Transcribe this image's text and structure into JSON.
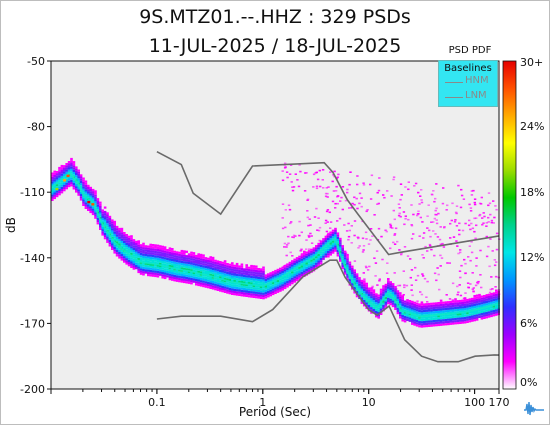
{
  "title_line1": "9S.MTZ01.--.HHZ : 329 PSDs",
  "title_line2": "11-JUL-2025 / 18-JUL-2025",
  "colorbar": {
    "title": "PSD PDF",
    "ticks": [
      "30+",
      "24%",
      "18%",
      "12%",
      "6%",
      "0%"
    ],
    "colors": [
      "#ffffff",
      "#ff00ff",
      "#9b00ff",
      "#2f2fff",
      "#0096ff",
      "#00e6e6",
      "#00d28c",
      "#00c800",
      "#9bdc00",
      "#ffff00",
      "#ffaa00",
      "#ff5000",
      "#e60000"
    ]
  },
  "legend": {
    "title": "Baselines",
    "items": [
      {
        "label": "HNM",
        "color": "#8a8a8a"
      },
      {
        "label": "LNM",
        "color": "#8a8a8a"
      }
    ]
  },
  "chart_data": {
    "type": "heatmap",
    "title": "9S.MTZ01.--.HHZ : 329 PSDs",
    "subtitle": "11-JUL-2025 / 18-JUL-2025",
    "xlabel": "Period (Sec)",
    "ylabel": "dB",
    "xscale": "log",
    "xlim": [
      0.01,
      170
    ],
    "ylim": [
      -200,
      -50
    ],
    "xticks": [
      {
        "value": 0.1,
        "label": "0.1"
      },
      {
        "value": 1,
        "label": "1"
      },
      {
        "value": 10,
        "label": "10"
      },
      {
        "value": 100,
        "label": "100"
      },
      {
        "value": 170,
        "label": "170"
      }
    ],
    "yticks": [
      -50,
      -80,
      -110,
      -140,
      -170,
      -200
    ],
    "grid": false,
    "mode_curve": {
      "period": [
        0.01,
        0.012,
        0.015,
        0.018,
        0.02,
        0.025,
        0.03,
        0.04,
        0.05,
        0.07,
        0.1,
        0.15,
        0.2,
        0.3,
        0.5,
        0.7,
        1.0,
        1.5,
        2.0,
        3.0,
        4.0,
        4.8,
        5.5,
        6.5,
        8.0,
        10.0,
        12.0,
        15.0,
        17.0,
        20.0,
        30.0,
        50.0,
        80.0,
        120.0,
        170.0
      ],
      "db": [
        -108,
        -105,
        -101,
        -106,
        -111,
        -115,
        -124,
        -133,
        -137,
        -142,
        -143,
        -145,
        -146,
        -148,
        -151,
        -152,
        -153,
        -149,
        -145,
        -140,
        -134,
        -131,
        -140,
        -148,
        -155,
        -160,
        -163,
        -156,
        -158,
        -164,
        -167,
        -166,
        -165,
        -163,
        -161
      ]
    },
    "spread_db": [
      {
        "period_min": 0.01,
        "period_max": 0.03,
        "below": 5,
        "above": 6
      },
      {
        "period_min": 0.03,
        "period_max": 0.1,
        "below": 5,
        "above": 8
      },
      {
        "period_min": 0.1,
        "period_max": 1.0,
        "below": 5,
        "above": 8
      },
      {
        "period_min": 1.0,
        "period_max": 5.0,
        "below": 5,
        "above": 5
      },
      {
        "period_min": 5.0,
        "period_max": 170.0,
        "below": 4,
        "above": 6
      }
    ],
    "scatter_region": {
      "period_min": 1.5,
      "period_max": 170.0,
      "db_min": -160,
      "db_max": -96,
      "color": "#ff00ff"
    },
    "baselines": [
      {
        "name": "HNM",
        "period": [
          0.1,
          0.17,
          0.22,
          0.4,
          0.8,
          3.8,
          4.6,
          6.3,
          7.9,
          15.4,
          20.0,
          354.8
        ],
        "db": [
          -91.5,
          -97.4,
          -110.5,
          -120.0,
          -98.0,
          -96.5,
          -101.0,
          -113.5,
          -120.0,
          -138.5,
          -137.5,
          -130.0
        ]
      },
      {
        "name": "LNM",
        "period": [
          0.1,
          0.17,
          0.4,
          0.8,
          1.24,
          2.4,
          4.3,
          5.0,
          6.0,
          10.0,
          12.0,
          15.6,
          21.9,
          31.6,
          45.0,
          70.0,
          101.0,
          154.0,
          170.0
        ],
        "db": [
          -168.0,
          -166.7,
          -166.7,
          -169.2,
          -163.7,
          -148.6,
          -141.1,
          -141.1,
          -149.0,
          -163.8,
          -166.2,
          -162.1,
          -177.5,
          -185.0,
          -187.5,
          -187.5,
          -185.0,
          -184.4,
          -184.5
        ]
      }
    ],
    "colorbar_range": [
      0,
      30
    ],
    "colorbar_unit": "%"
  }
}
